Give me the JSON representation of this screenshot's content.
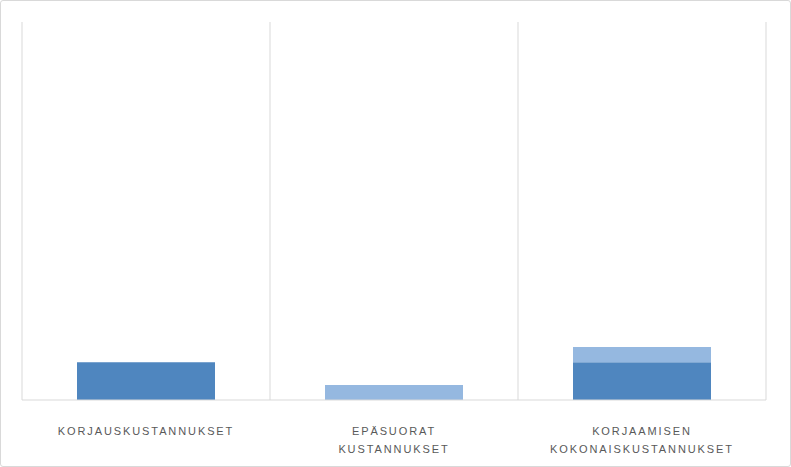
{
  "chart_data": {
    "type": "bar",
    "categories": [
      "KORJAUSKUSTANNUKSET",
      "EPÄSUORAT KUSTANNUKSET",
      "KORJAAMISEN KOKONAISKUSTANNUKSET"
    ],
    "series": [
      {
        "color": "#4f86bf",
        "values": [
          10,
          null,
          10
        ]
      },
      {
        "color": "#95b8e0",
        "values": [
          null,
          4,
          4
        ]
      }
    ],
    "stacked": true,
    "ylim": [
      0,
      100
    ],
    "grid": true,
    "tick_labels": "x"
  }
}
